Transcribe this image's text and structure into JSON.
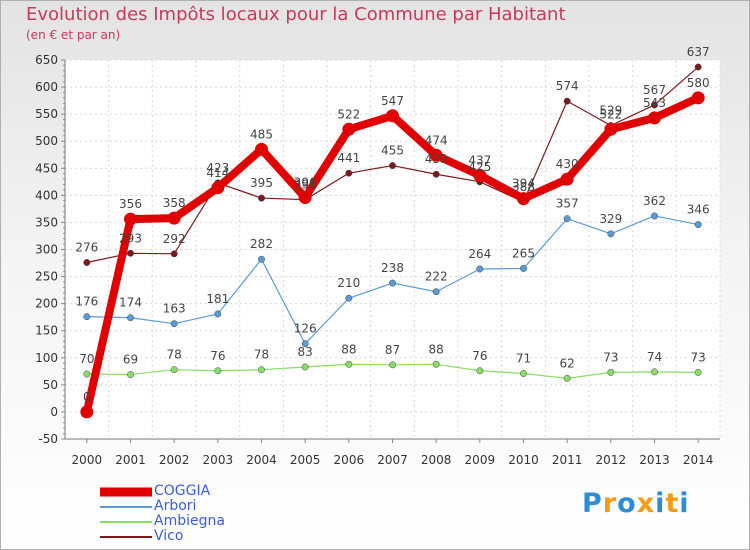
{
  "title": "Evolution des Impôts locaux pour la Commune par Habitant",
  "subtitle": "(en € et par an)",
  "logo": {
    "text": "Proxiti",
    "letters": [
      "P",
      "r",
      "o",
      "x",
      "i",
      "t",
      "i"
    ],
    "colors": [
      "#2e8bd6",
      "#f59b16",
      "#2e8bd6",
      "#f59b16",
      "#2e8bd6",
      "#f59b16",
      "#2e8bd6"
    ]
  },
  "chart_data": {
    "type": "line",
    "categories": [
      "2000",
      "2001",
      "2002",
      "2003",
      "2004",
      "2005",
      "2006",
      "2007",
      "2008",
      "2009",
      "2010",
      "2011",
      "2012",
      "2013",
      "2014"
    ],
    "ylim": [
      -50,
      650
    ],
    "yticks": [
      -50,
      0,
      50,
      100,
      150,
      200,
      250,
      300,
      350,
      400,
      450,
      500,
      550,
      600,
      650
    ],
    "grid": true,
    "legend_position": "bottom-left",
    "series": [
      {
        "name": "COGGIA",
        "color": "#e00000",
        "values": [
          0,
          356,
          358,
          414,
          485,
          396,
          522,
          547,
          474,
          437,
          394,
          430,
          522,
          543,
          580
        ],
        "labels": [
          "0",
          "356",
          "358",
          "414",
          "485",
          "396",
          "522",
          "547",
          "474",
          "437",
          "394",
          "430",
          "522",
          "543",
          "580"
        ]
      },
      {
        "name": "Arbori",
        "color": "#5b9bd5",
        "values": [
          176,
          174,
          163,
          181,
          282,
          126,
          210,
          238,
          222,
          264,
          265,
          357,
          329,
          362,
          346
        ],
        "labels": [
          "176",
          "174",
          "163",
          "181",
          "282",
          "126",
          "210",
          "238",
          "222",
          "264",
          "265",
          "357",
          "329",
          "362",
          "346"
        ]
      },
      {
        "name": "Ambiegna",
        "color": "#88dd66",
        "values": [
          70,
          69,
          78,
          76,
          78,
          83,
          88,
          87,
          88,
          76,
          71,
          62,
          73,
          74,
          73
        ],
        "labels": [
          "70",
          "69",
          "78",
          "76",
          "78",
          "83",
          "88",
          "87",
          "88",
          "76",
          "71",
          "62",
          "73",
          "74",
          "73"
        ]
      },
      {
        "name": "Vico",
        "color": "#7a1a1a",
        "values": [
          276,
          293,
          292,
          423,
          395,
          392,
          441,
          455,
          439,
          425,
          388,
          574,
          529,
          567,
          637
        ],
        "labels": [
          "276",
          "293",
          "292",
          "423",
          "395",
          "392",
          "441",
          "455",
          "439",
          "425",
          "388",
          "574",
          "529",
          "567",
          "637"
        ]
      }
    ]
  }
}
